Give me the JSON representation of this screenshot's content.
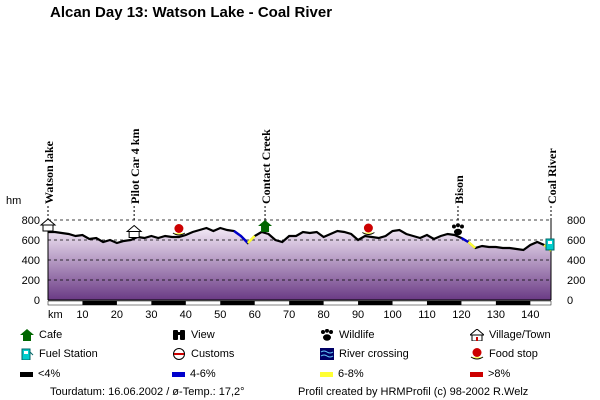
{
  "title": "Alcan Day 13: Watson Lake - Coal River",
  "chart_data": {
    "type": "area",
    "title": "Alcan Day 13: Watson Lake - Coal River",
    "ylabel": "hm",
    "xlabel": "km",
    "xlim": [
      0,
      146
    ],
    "ylim": [
      0,
      800
    ],
    "x_ticks": [
      10,
      20,
      30,
      40,
      50,
      60,
      70,
      80,
      90,
      100,
      110,
      120,
      130,
      140
    ],
    "y_ticks": [
      0,
      200,
      400,
      600,
      800
    ],
    "grid": true,
    "series": [
      {
        "x": [
          0,
          2,
          4,
          6,
          8,
          10,
          12,
          14,
          16,
          18,
          20,
          22,
          24,
          26,
          28,
          30,
          32,
          34,
          36,
          38,
          40,
          42,
          44,
          46,
          48,
          50,
          52,
          54,
          56,
          58,
          60,
          62,
          64,
          66,
          68,
          70,
          72,
          74,
          76,
          78,
          80,
          82,
          84,
          86,
          88,
          90,
          92,
          94,
          96,
          98,
          100,
          102,
          104,
          106,
          108,
          110,
          112,
          114,
          116,
          118,
          120,
          122,
          124,
          126,
          128,
          130,
          132,
          134,
          136,
          138,
          140,
          142,
          144,
          146
        ],
        "y": [
          680,
          680,
          670,
          660,
          640,
          650,
          610,
          620,
          580,
          600,
          570,
          590,
          600,
          630,
          620,
          640,
          620,
          640,
          630,
          630,
          650,
          680,
          700,
          720,
          690,
          720,
          700,
          690,
          640,
          570,
          640,
          680,
          660,
          600,
          580,
          640,
          640,
          680,
          670,
          680,
          630,
          660,
          690,
          680,
          660,
          600,
          640,
          630,
          620,
          640,
          690,
          700,
          660,
          640,
          620,
          650,
          610,
          640,
          660,
          650,
          620,
          580,
          520,
          540,
          530,
          530,
          520,
          520,
          510,
          500,
          550,
          580,
          550,
          490
        ]
      }
    ]
  },
  "waypoints": [
    {
      "km": 0,
      "label": "Watson lake"
    },
    {
      "km": 25,
      "label": "Pilot Car 4 km"
    },
    {
      "km": 63,
      "label": "Contact Creek"
    },
    {
      "km": 119,
      "label": "Bison"
    },
    {
      "km": 146,
      "label": "Coal River"
    }
  ],
  "markers": [
    {
      "km": 0,
      "icon": "village-icon"
    },
    {
      "km": 25,
      "icon": "village-icon"
    },
    {
      "km": 38,
      "icon": "food-stop-icon"
    },
    {
      "km": 63,
      "icon": "cafe-icon"
    },
    {
      "km": 93,
      "icon": "food-stop-icon"
    },
    {
      "km": 119,
      "icon": "wildlife-icon"
    },
    {
      "km": 146,
      "icon": "fuel-station-icon"
    }
  ],
  "legend": {
    "cafe": "Cafe",
    "view": "View",
    "wildlife": "Wildlife",
    "village": "Village/Town",
    "fuel": "Fuel Station",
    "customs": "Customs",
    "river": "River crossing",
    "food": "Food stop",
    "grade1": "<4%",
    "grade2": "4-6%",
    "grade3": "6-8%",
    "grade4": ">8%"
  },
  "colors": {
    "grade1": "#000000",
    "grade2": "#0000cc",
    "grade3": "#ffff33",
    "grade4": "#cc0000",
    "cafe": "#006600",
    "fuel": "#00cccc",
    "food": "#cc0000",
    "fill_top": "#f3e9f6",
    "fill_bottom": "#6a3a85"
  },
  "footer": {
    "left": "Tourdatum: 16.06.2002 / ø-Temp.: 17,2°",
    "right": "Profil created by HRMProfil (c) 98-2002 R.Welz"
  }
}
